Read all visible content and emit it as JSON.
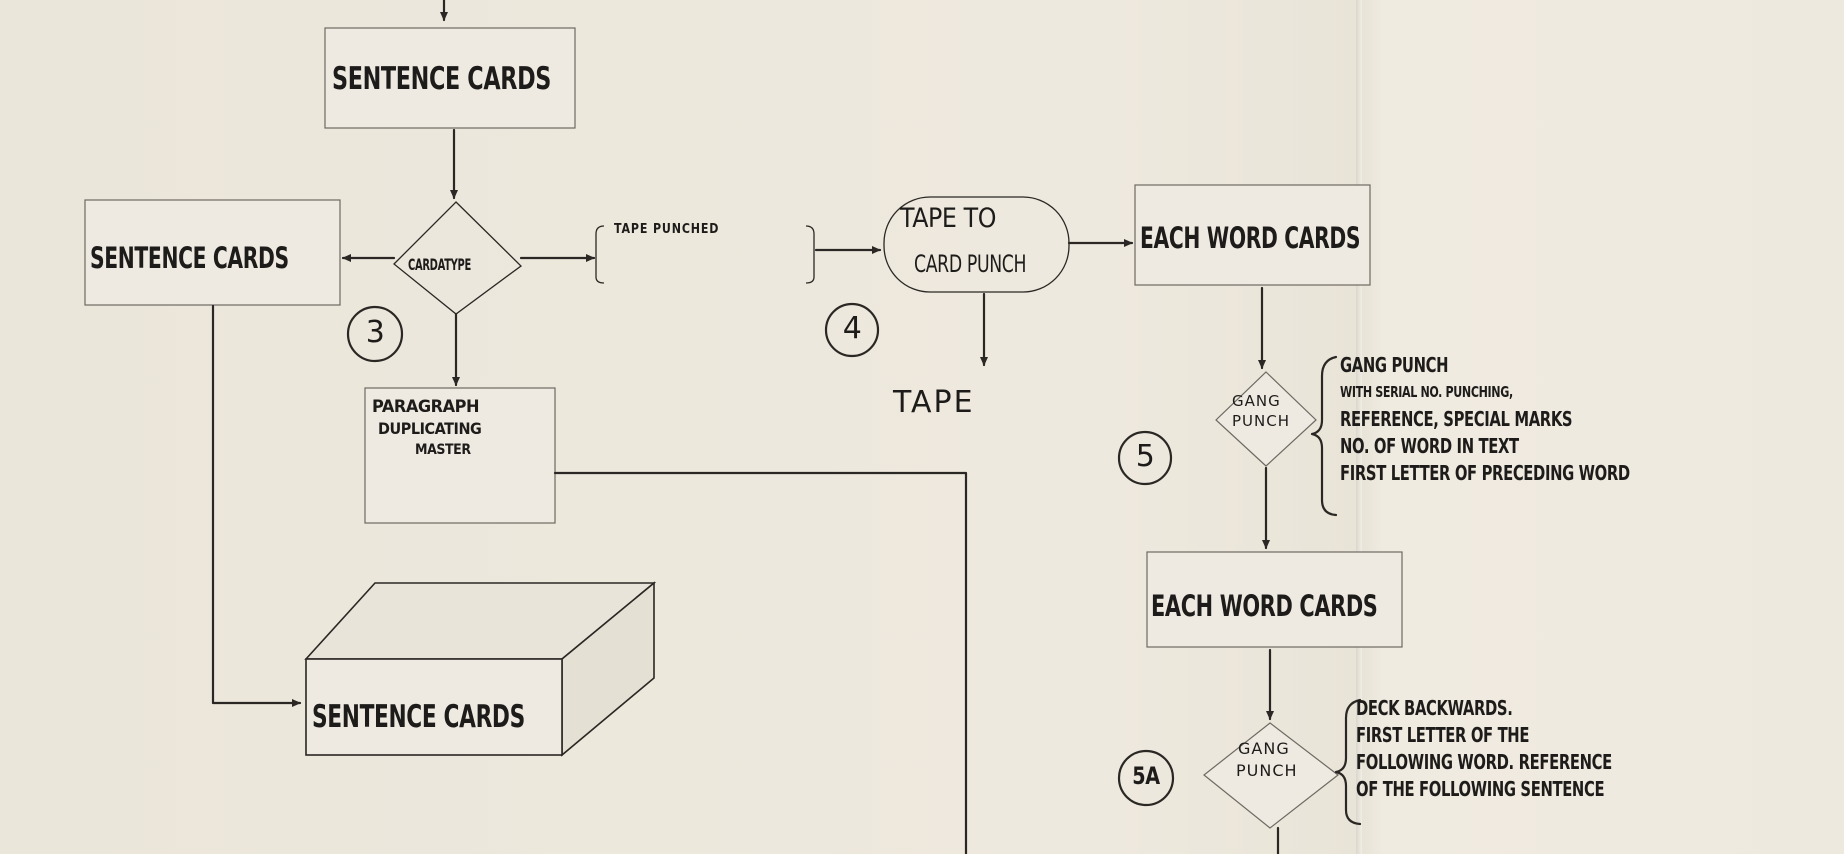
{
  "nodes": {
    "sentence_cards_top": "SENTENCE CARDS",
    "sentence_cards_left": "SENTENCE CARDS",
    "cardatype": "CARDATYPE",
    "tape_punched": "TAPE PUNCHED",
    "tape_to_card_punch_line1": "TAPE TO",
    "tape_to_card_punch_line2": "CARD PUNCH",
    "tape": "TAPE",
    "each_word_cards_top": "EACH WORD CARDS",
    "each_word_cards_bottom": "EACH WORD CARDS",
    "paragraph_master_line1": "PARAGRAPH",
    "paragraph_master_line2": "DUPLICATING",
    "paragraph_master_line3": "MASTER",
    "sentence_cards_file": "SENTENCE CARDS",
    "gang_punch_5_line1": "GANG",
    "gang_punch_5_line2": "PUNCH",
    "gang_punch_5a_line1": "GANG",
    "gang_punch_5a_line2": "PUNCH"
  },
  "steps": {
    "step3": "3",
    "step4": "4",
    "step5": "5",
    "step5a": "5A"
  },
  "notes": {
    "gang_punch_5": [
      "GANG PUNCH",
      "WITH SERIAL NO. PUNCHING,",
      "REFERENCE, SPECIAL MARKS",
      "NO. OF WORD IN TEXT",
      "FIRST LETTER OF PRECEDING WORD"
    ],
    "gang_punch_5a": [
      "DECK BACKWARDS.",
      "FIRST LETTER OF THE",
      "FOLLOWING WORD. REFERENCE",
      "OF THE FOLLOWING SENTENCE"
    ]
  }
}
